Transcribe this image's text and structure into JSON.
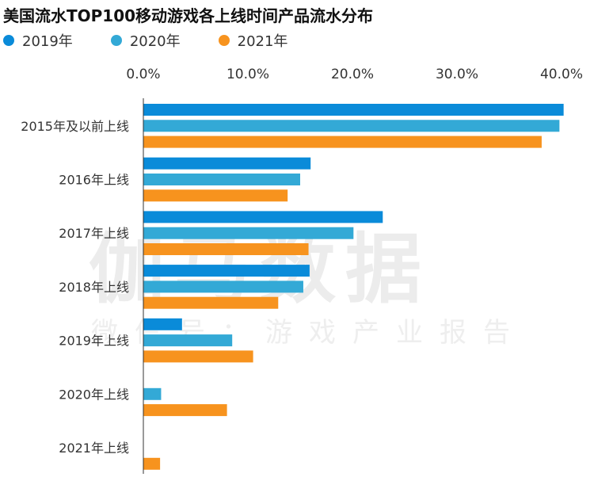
{
  "title": "美国流水TOP100移动游戏各上线时间产品流水分布",
  "watermark": {
    "main": "伽马数据",
    "sub": "微信号：游戏产业报告"
  },
  "colors": {
    "2019年": "#0a8bd9",
    "2020年": "#33a9d6",
    "2021年": "#f7931e",
    "axis": "#333333"
  },
  "chart_data": {
    "type": "bar",
    "orientation": "horizontal",
    "title": "美国流水TOP100移动游戏各上线时间产品流水分布",
    "legend_position": "top-left",
    "x_axis_position": "top",
    "grid": false,
    "xlim": [
      0,
      40
    ],
    "ticks": [
      "0.0%",
      "10.0%",
      "20.0%",
      "30.0%",
      "40.0%"
    ],
    "categories": [
      "2015年及以前上线",
      "2016年上线",
      "2017年上线",
      "2018年上线",
      "2019年上线",
      "2020年上线",
      "2021年上线"
    ],
    "series": [
      {
        "name": "2019年",
        "values": [
          40.2,
          16.0,
          22.9,
          15.9,
          3.7,
          0,
          0
        ]
      },
      {
        "name": "2020年",
        "values": [
          39.8,
          15.0,
          20.1,
          15.3,
          8.5,
          1.7,
          0
        ]
      },
      {
        "name": "2021年",
        "values": [
          38.1,
          13.8,
          15.8,
          12.9,
          10.5,
          8.0,
          1.6
        ]
      }
    ]
  }
}
